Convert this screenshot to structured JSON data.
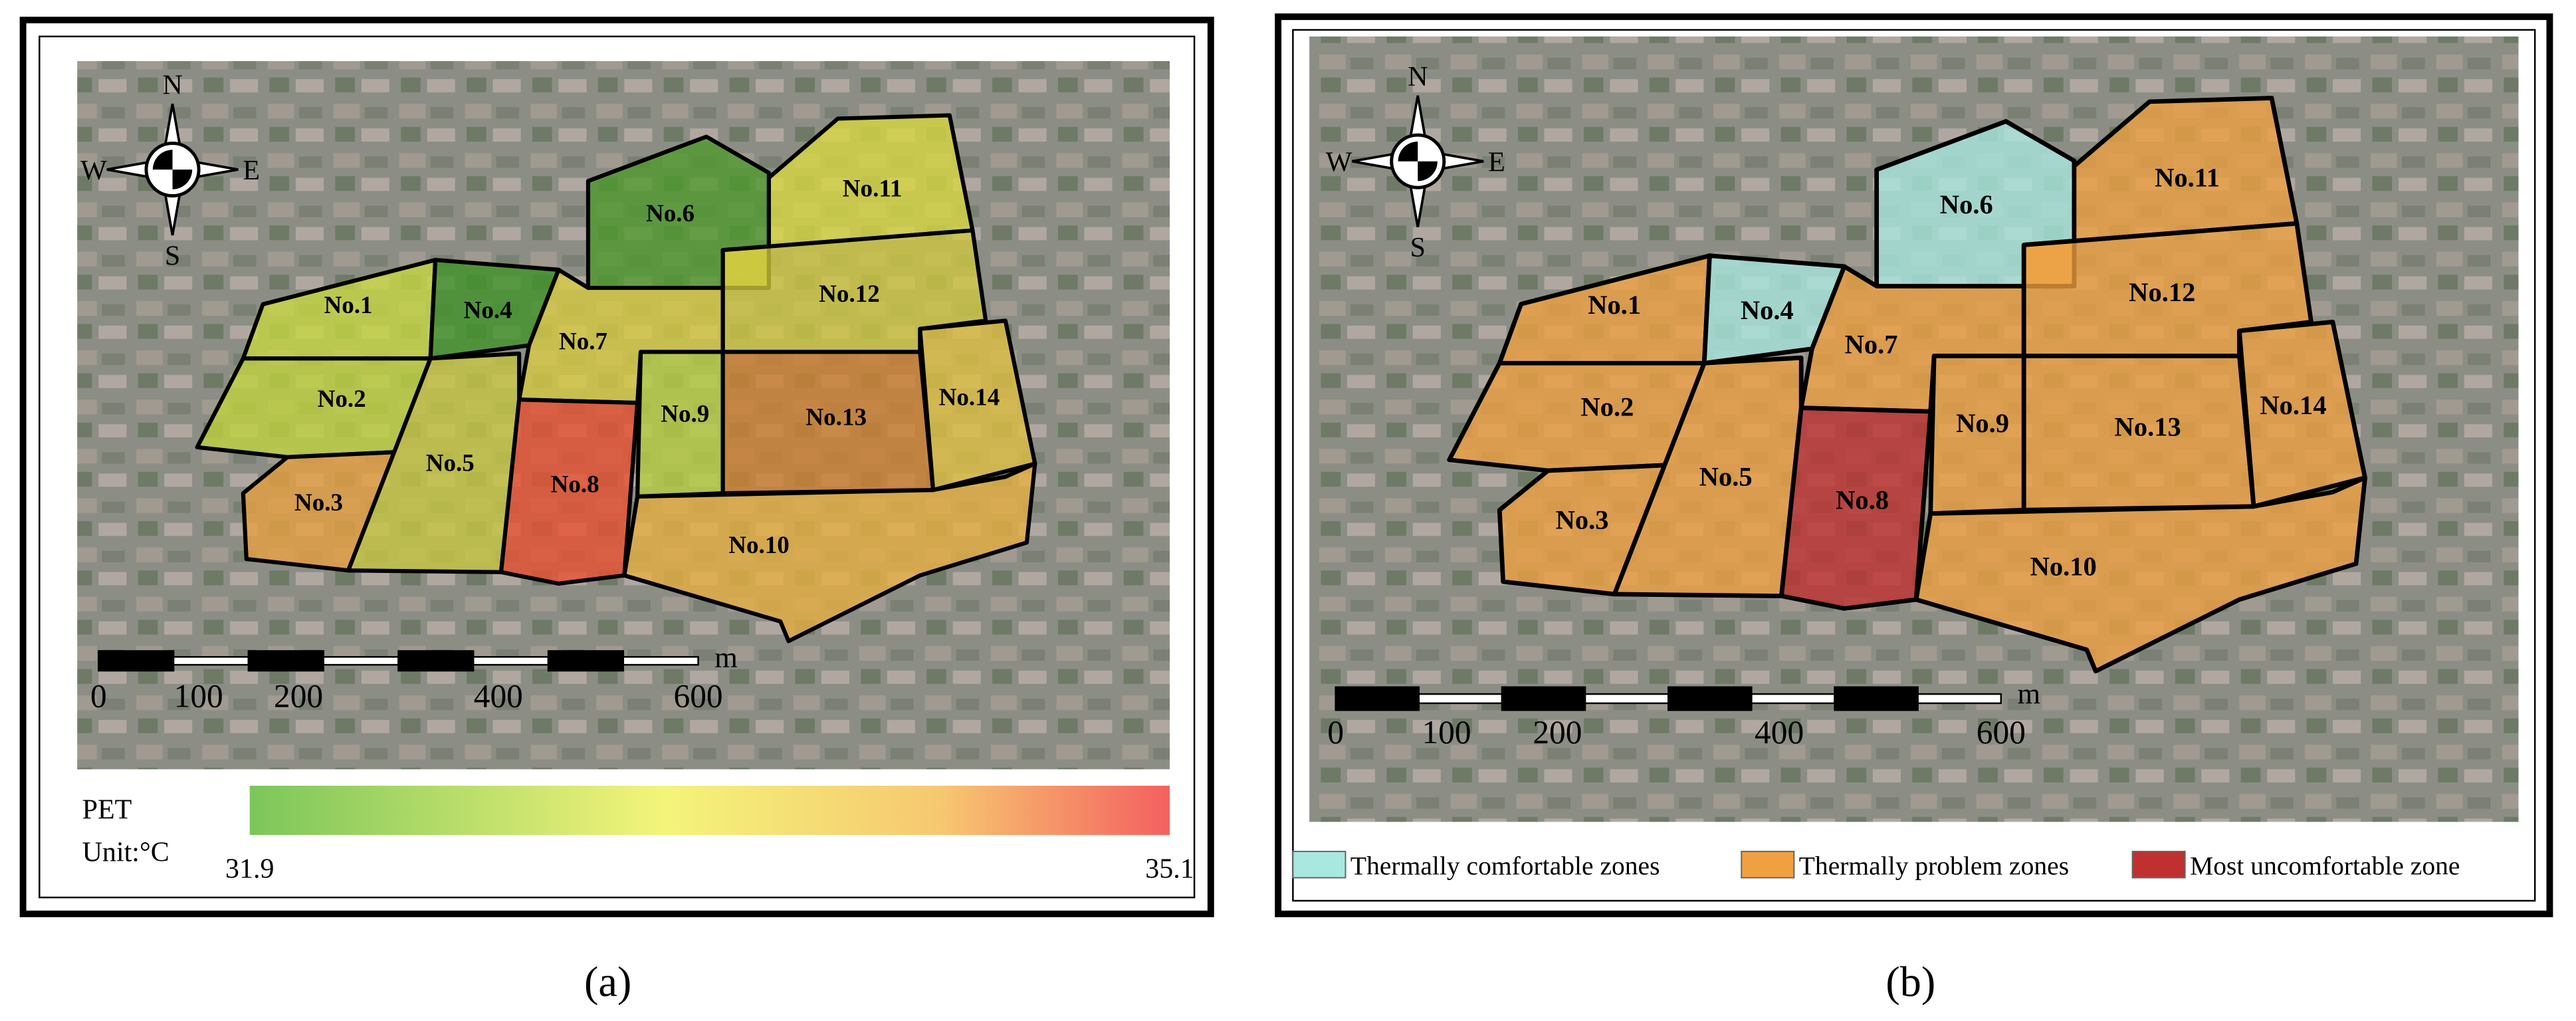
{
  "panels": [
    {
      "zones": [
        "No.1",
        "No.2",
        "No.3",
        "No.4",
        "No.5",
        "No.6",
        "No.7",
        "No.8",
        "No.9",
        "No.10",
        "No.11",
        "No.12",
        "No.13",
        "No.14"
      ],
      "compass": {
        "n": "N",
        "s": "S",
        "w": "W",
        "e": "E"
      },
      "scale": {
        "ticks": [
          0,
          100,
          200,
          400,
          600
        ],
        "unit": "m"
      },
      "legend": {
        "title": "PET",
        "unit": "Unit:°C",
        "min": 31.9,
        "max": 35.1
      },
      "caption": "(a)"
    },
    {
      "zones": [
        "No.1",
        "No.2",
        "No.3",
        "No.4",
        "No.5",
        "No.6",
        "No.7",
        "No.8",
        "No.9",
        "No.10",
        "No.11",
        "No.12",
        "No.13",
        "No.14"
      ],
      "compass": {
        "n": "N",
        "s": "S",
        "w": "W",
        "e": "E"
      },
      "scale": {
        "ticks": [
          0,
          100,
          200,
          400,
          600
        ],
        "unit": "m"
      },
      "legend": {
        "items": [
          "Thermally comfortable zones",
          "Thermally problem zones",
          "Most uncomfortable zone"
        ]
      },
      "caption": "(b)"
    }
  ]
}
